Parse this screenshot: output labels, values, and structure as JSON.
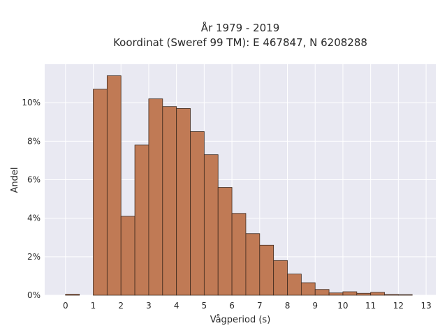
{
  "chart_data": {
    "type": "bar",
    "title_lines": [
      "År 1979 - 2019",
      "Koordinat (Sweref 99 TM): E 467847, N 6208288"
    ],
    "xlabel": "Vågperiod (s)",
    "ylabel": "Andel",
    "bin_width": 0.5,
    "bin_starts": [
      0,
      0.5,
      1,
      1.5,
      2,
      2.5,
      3,
      3.5,
      4,
      4.5,
      5,
      5.5,
      6,
      6.5,
      7,
      7.5,
      8,
      8.5,
      9,
      9.5,
      10,
      10.5,
      11,
      11.5,
      12,
      12.5
    ],
    "values": [
      0.05,
      0,
      10.7,
      11.4,
      4.1,
      7.8,
      10.2,
      9.8,
      9.7,
      8.5,
      7.3,
      5.6,
      4.25,
      3.2,
      2.6,
      1.8,
      1.1,
      0.65,
      0.3,
      0.12,
      0.18,
      0.1,
      0.15,
      0.04,
      0.03,
      0
    ],
    "xlim": [
      -0.75,
      13.35
    ],
    "ylim": [
      0,
      12.0
    ],
    "x_ticks": [
      0,
      1,
      2,
      3,
      4,
      5,
      6,
      7,
      8,
      9,
      10,
      11,
      12,
      13
    ],
    "y_ticks": [
      0,
      2,
      4,
      6,
      8,
      10
    ],
    "y_tick_suffix": "%",
    "grid": true,
    "colors": {
      "bar_fill": "#c07a55",
      "bar_stroke": "#3f2a1e",
      "plot_bg": "#e9e9f2",
      "grid": "#ffffff"
    }
  }
}
